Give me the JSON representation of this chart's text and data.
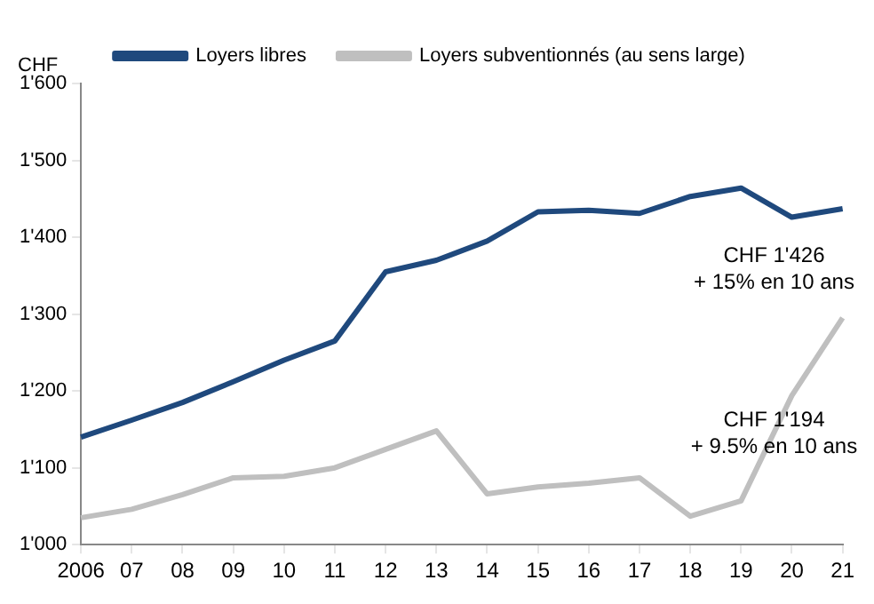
{
  "chart_data": {
    "type": "line",
    "ylabel": "CHF",
    "categories": [
      "2006",
      "07",
      "08",
      "09",
      "10",
      "11",
      "12",
      "13",
      "14",
      "15",
      "16",
      "17",
      "18",
      "19",
      "20",
      "21"
    ],
    "series": [
      {
        "name": "Loyers libres",
        "color": "#1f497d",
        "values": [
          1140,
          1162,
          1185,
          1212,
          1240,
          1265,
          1355,
          1370,
          1395,
          1433,
          1435,
          1431,
          1453,
          1464,
          1426,
          1437
        ]
      },
      {
        "name": "Loyers subventionnés (au sens large)",
        "color": "#bfbfbf",
        "values": [
          1035,
          1046,
          1065,
          1087,
          1089,
          1100,
          1124,
          1148,
          1066,
          1075,
          1080,
          1087,
          1037,
          1057,
          1194,
          1295
        ]
      }
    ],
    "ylim": [
      1000,
      1600
    ],
    "yticks": [
      {
        "value": 1000,
        "label": "1'000"
      },
      {
        "value": 1100,
        "label": "1'100"
      },
      {
        "value": 1200,
        "label": "1'200"
      },
      {
        "value": 1300,
        "label": "1'300"
      },
      {
        "value": 1400,
        "label": "1'400"
      },
      {
        "value": 1500,
        "label": "1'500"
      },
      {
        "value": 1600,
        "label": "1'600"
      }
    ],
    "annotations": [
      {
        "text": "CHF 1'426\n+ 15% en 10 ans",
        "x": "20",
        "y": 1426
      },
      {
        "text": "CHF 1'194\n+ 9.5% en 10 ans",
        "x": "20",
        "y": 1194
      }
    ],
    "grid": false,
    "legend": "top",
    "marker": "none",
    "line_style": "solid"
  }
}
